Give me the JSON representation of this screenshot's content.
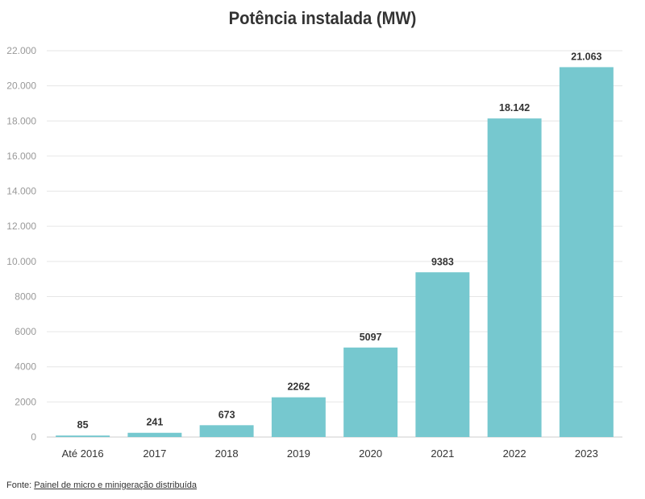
{
  "chart_data": {
    "type": "bar",
    "title": "Potência instalada (MW)",
    "categories": [
      "Até 2016",
      "2017",
      "2018",
      "2019",
      "2020",
      "2021",
      "2022",
      "2023"
    ],
    "values": [
      85,
      241,
      673,
      2262,
      5097,
      9383,
      18142,
      21063
    ],
    "value_labels": [
      "85",
      "241",
      "673",
      "2262",
      "5097",
      "9383",
      "18.142",
      "21.063"
    ],
    "ylim": [
      0,
      22000
    ],
    "yticks": [
      0,
      2000,
      4000,
      6000,
      8000,
      10000,
      12000,
      14000,
      16000,
      18000,
      20000,
      22000
    ],
    "ytick_labels": [
      "0",
      "2000",
      "4000",
      "6000",
      "8000",
      "10.000",
      "12.000",
      "14.000",
      "16.000",
      "18.000",
      "20.000",
      "22.000"
    ],
    "grid": true,
    "bar_color": "#76C8CF"
  },
  "source": {
    "prefix": "Fonte:",
    "link_text": "Painel de micro e minigeração distribuída"
  }
}
